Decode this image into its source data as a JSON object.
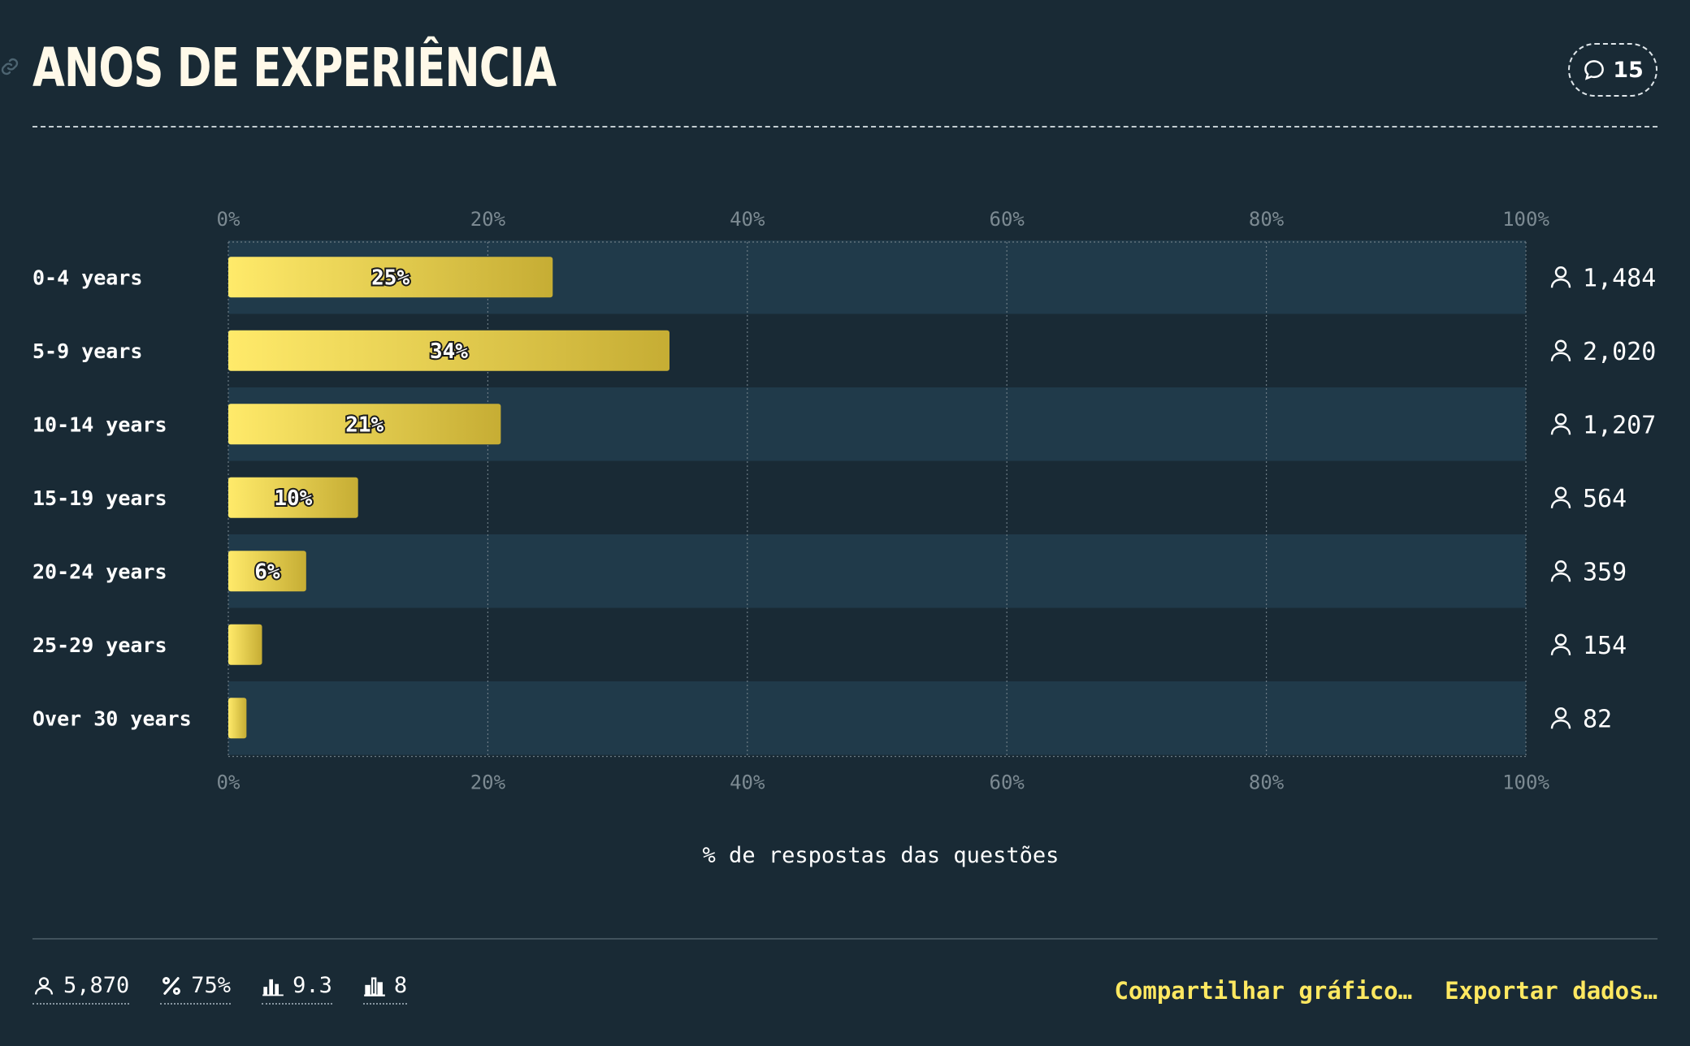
{
  "header": {
    "title": "ANOS DE EXPERIÊNCIA",
    "comment_count": "15",
    "icons": {
      "link": "link-icon",
      "comments": "speech-bubble-icon"
    }
  },
  "colors": {
    "background": "#192a35",
    "row_band": "#203a4a",
    "bar_gradient_start": "#ffea6a",
    "bar_gradient_end": "#c6ad34",
    "action": "#ffe861"
  },
  "chart_data": {
    "type": "bar",
    "orientation": "horizontal",
    "categories": [
      "0-4 years",
      "5-9 years",
      "10-14 years",
      "15-19 years",
      "20-24 years",
      "25-29 years",
      "Over 30 years"
    ],
    "values": [
      25,
      34,
      21,
      10,
      6,
      2.6,
      1.4
    ],
    "value_labels": [
      "25%",
      "34%",
      "21%",
      "10%",
      "6%",
      "",
      ""
    ],
    "counts": [
      "1,484",
      "2,020",
      "1,207",
      "564",
      "359",
      "154",
      "82"
    ],
    "xlim": [
      0,
      100
    ],
    "xticks": [
      "0%",
      "20%",
      "40%",
      "60%",
      "80%",
      "100%"
    ],
    "xlabel": "% de respostas das questões",
    "grid": true
  },
  "footer": {
    "stats": [
      {
        "icon": "person-icon",
        "value": "5,870"
      },
      {
        "icon": "percent-icon",
        "value": "75%"
      },
      {
        "icon": "bar-chart-icon",
        "value": "9.3"
      },
      {
        "icon": "bar-chart-outline-icon",
        "value": "8"
      }
    ],
    "share_label": "Compartilhar gráfico…",
    "export_label": "Exportar dados…"
  }
}
